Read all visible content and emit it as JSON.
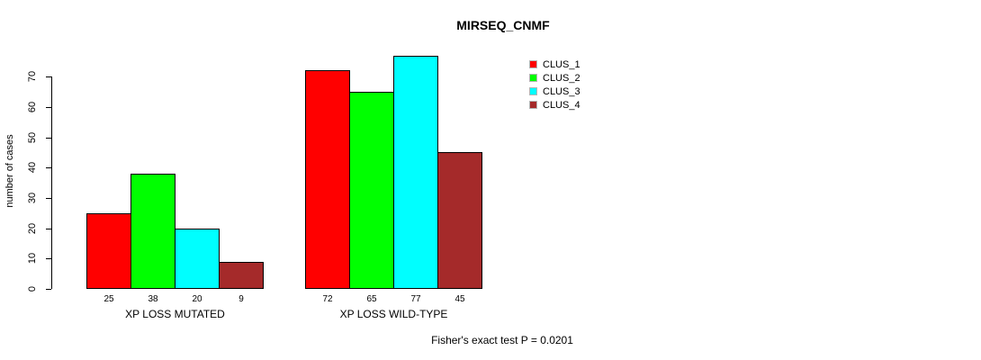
{
  "chart_data": {
    "type": "bar",
    "title": "MIRSEQ_CNMF",
    "xlabel": "",
    "ylabel": "number of cases",
    "categories": [
      "XP LOSS MUTATED",
      "XP LOSS WILD-TYPE"
    ],
    "series": [
      {
        "name": "CLUS_1",
        "color": "#FF0000",
        "values": [
          25,
          72
        ]
      },
      {
        "name": "CLUS_2",
        "color": "#00FF00",
        "values": [
          38,
          65
        ]
      },
      {
        "name": "CLUS_3",
        "color": "#00FFFF",
        "values": [
          20,
          77
        ]
      },
      {
        "name": "CLUS_4",
        "color": "#A52A2A",
        "values": [
          9,
          45
        ]
      }
    ],
    "yticks": [
      0,
      10,
      20,
      30,
      40,
      50,
      60,
      70
    ],
    "ylim": [
      0,
      78
    ],
    "bar_value_labels": true,
    "grid": false,
    "legend_position": "top-right",
    "annotation": "Fisher's exact test P = 0.0201"
  },
  "colors": {
    "background": "#ffffff",
    "axis": "#000000",
    "bar_border": "#000000",
    "text": "#000000"
  }
}
